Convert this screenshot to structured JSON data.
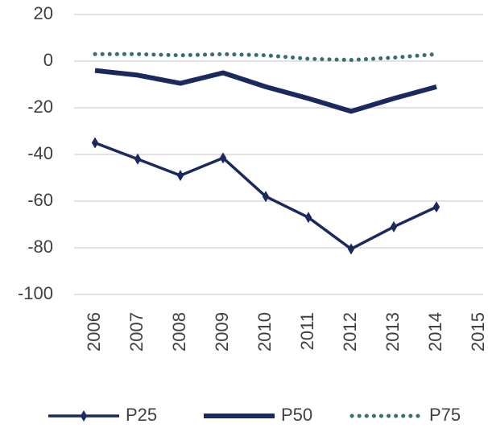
{
  "chart_data": {
    "type": "line",
    "categories": [
      "2006",
      "2007",
      "2008",
      "2009",
      "2010",
      "2011",
      "2012",
      "2013",
      "2014",
      "2015"
    ],
    "series": [
      {
        "name": "P25",
        "color": "#1b2a5e",
        "marker": "diamond",
        "values": [
          -35,
          -42,
          -49,
          -41.5,
          -58,
          -67,
          -80.5,
          -71,
          -62.5,
          null
        ]
      },
      {
        "name": "P50",
        "color": "#1b2a5e",
        "values": [
          -4,
          -6,
          -9.5,
          -5,
          -11,
          -16,
          -21.5,
          -16,
          -11,
          null
        ]
      },
      {
        "name": "P75",
        "color": "#3a6e70",
        "line_style": "dotted",
        "values": [
          3,
          3,
          2.5,
          3,
          2.5,
          1,
          0.5,
          1.5,
          3,
          null
        ]
      }
    ],
    "ylim": [
      -100,
      20
    ],
    "yticks": [
      -100,
      -80,
      -60,
      -40,
      -20,
      0,
      20
    ],
    "grid": true,
    "legend": "bottom"
  }
}
